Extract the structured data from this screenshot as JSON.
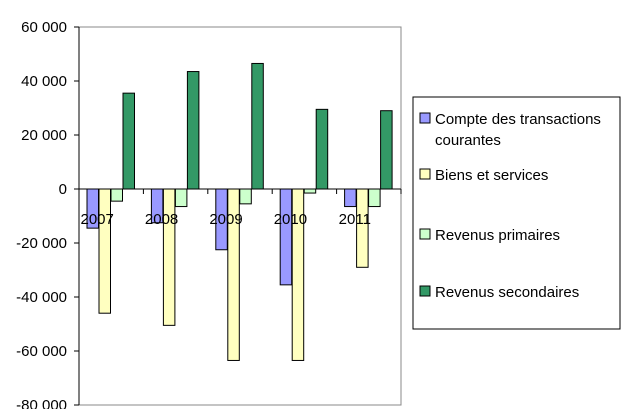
{
  "chart_data": {
    "type": "bar",
    "categories": [
      "2007",
      "2008",
      "2009",
      "2010",
      "2011"
    ],
    "series": [
      {
        "name": "Compte des transactions courantes",
        "legend_lines": [
          "Compte des transactions",
          "courantes"
        ],
        "color": "#9999ff",
        "values": [
          -14500,
          -12500,
          -22500,
          -35500,
          -6500
        ]
      },
      {
        "name": "Biens et services",
        "legend_lines": [
          "Biens et services"
        ],
        "color": "#ffffc0",
        "values": [
          -46000,
          -50500,
          -63500,
          -63500,
          -29000
        ]
      },
      {
        "name": "Revenus primaires",
        "legend_lines": [
          "Revenus primaires"
        ],
        "color": "#ccffcc",
        "values": [
          -4500,
          -6500,
          -5500,
          -1500,
          -6500
        ]
      },
      {
        "name": "Revenus secondaires",
        "legend_lines": [
          "Revenus secondaires"
        ],
        "color": "#339966",
        "values": [
          35500,
          43500,
          46500,
          29500,
          29000
        ]
      }
    ],
    "ylim": [
      -80000,
      60000
    ],
    "yticks": [
      60000,
      40000,
      20000,
      0,
      -20000,
      -40000,
      -60000,
      -80000
    ],
    "ytick_labels": [
      "60 000",
      "40 000",
      "20 000",
      "0",
      "-20 000",
      "-40 000",
      "-60 000",
      "-80 000"
    ],
    "grid": false,
    "legend_position": "right",
    "title": "",
    "xlabel": "",
    "ylabel": ""
  }
}
